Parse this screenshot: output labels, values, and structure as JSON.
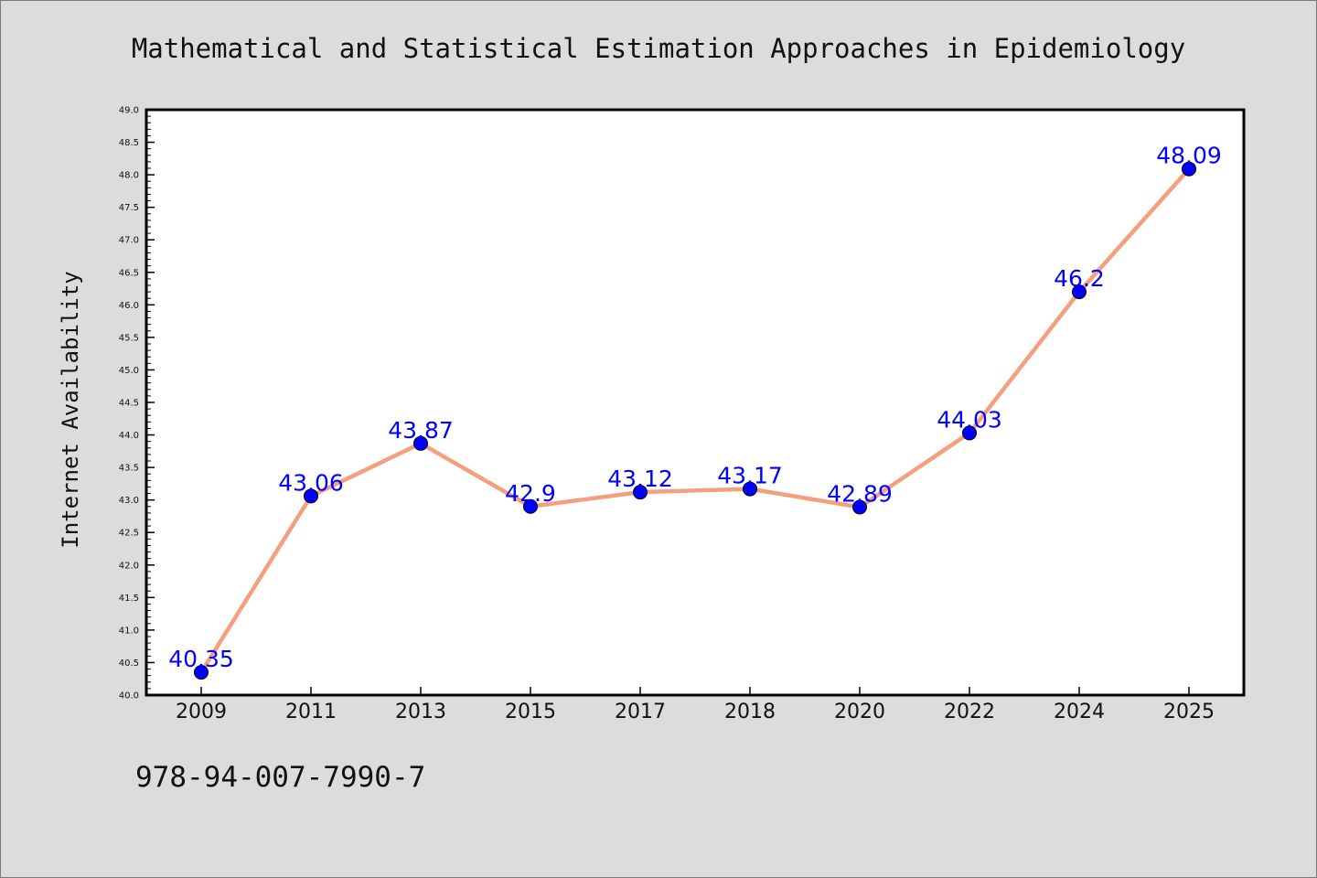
{
  "chart_data": {
    "type": "line",
    "title": "Mathematical and Statistical Estimation Approaches in Epidemiology",
    "xlabel": "",
    "ylabel": "Internet Availability",
    "categories": [
      "2009",
      "2011",
      "2013",
      "2015",
      "2017",
      "2018",
      "2020",
      "2022",
      "2024",
      "2025"
    ],
    "values": [
      40.35,
      43.06,
      43.87,
      42.9,
      43.12,
      43.17,
      42.89,
      44.03,
      46.2,
      48.09
    ],
    "data_labels": [
      "40.35",
      "43.06",
      "43.87",
      "42.9",
      "43.12",
      "43.17",
      "42.89",
      "44.03",
      "46.2",
      "48.09"
    ],
    "ylim": [
      40.0,
      49.0
    ],
    "yticks": [
      "40.0",
      "40.5",
      "41.0",
      "41.5",
      "42.0",
      "42.5",
      "43.0",
      "43.5",
      "44.0",
      "44.5",
      "45.0",
      "45.5",
      "46.0",
      "46.5",
      "47.0",
      "47.5",
      "48.0",
      "48.5",
      "49.0"
    ],
    "grid": false,
    "line_color": "#f4a07e",
    "marker_color": "#0000ff",
    "label_color": "#0000ff"
  },
  "footer": {
    "isbn": "978-94-007-7990-7"
  }
}
